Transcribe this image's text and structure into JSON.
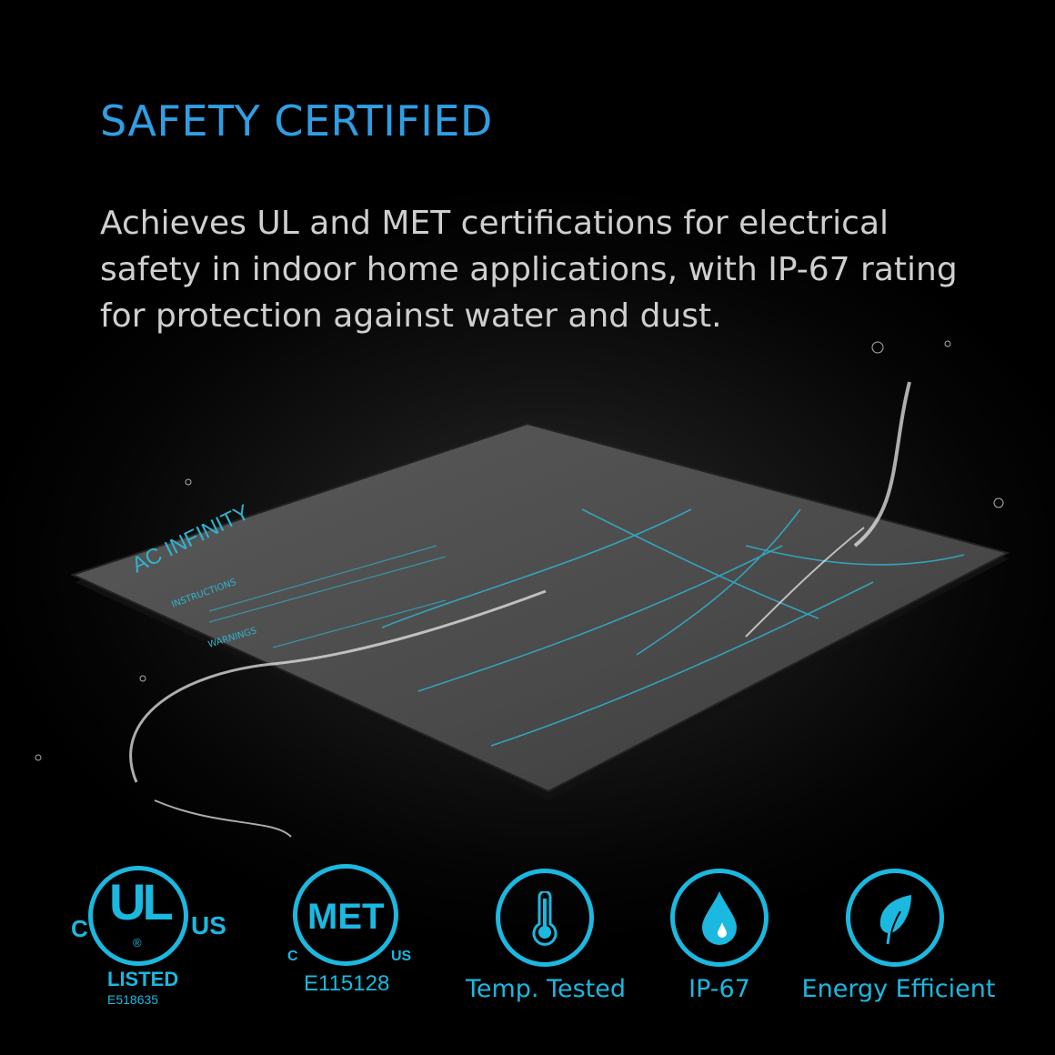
{
  "heading": "SAFETY CERTIFIED",
  "description": "Achieves UL and MET certifications for electrical safety in indoor home applications, with IP-67 rating for protection against water and dust.",
  "product": {
    "brand_lettering": "AC INFINITY",
    "mat_labels": [
      "INSTRUCTIONS",
      "WARNINGS"
    ]
  },
  "certifications": {
    "ul": {
      "mark": "UL",
      "c": "C",
      "us": "US",
      "registered": "®",
      "listed": "LISTED",
      "number": "E518635"
    },
    "met": {
      "mark": "MET",
      "c": "C",
      "us": "US",
      "number": "E115128"
    }
  },
  "features": [
    {
      "icon": "thermometer-icon",
      "label": "Temp. Tested"
    },
    {
      "icon": "water-drop-icon",
      "label": "IP-67"
    },
    {
      "icon": "leaf-icon",
      "label": "Energy Efficient"
    }
  ],
  "colors": {
    "accent": "#1bb8e0",
    "heading": "#2f9fe4",
    "body_text": "#cfcfcf",
    "background": "#000000"
  }
}
